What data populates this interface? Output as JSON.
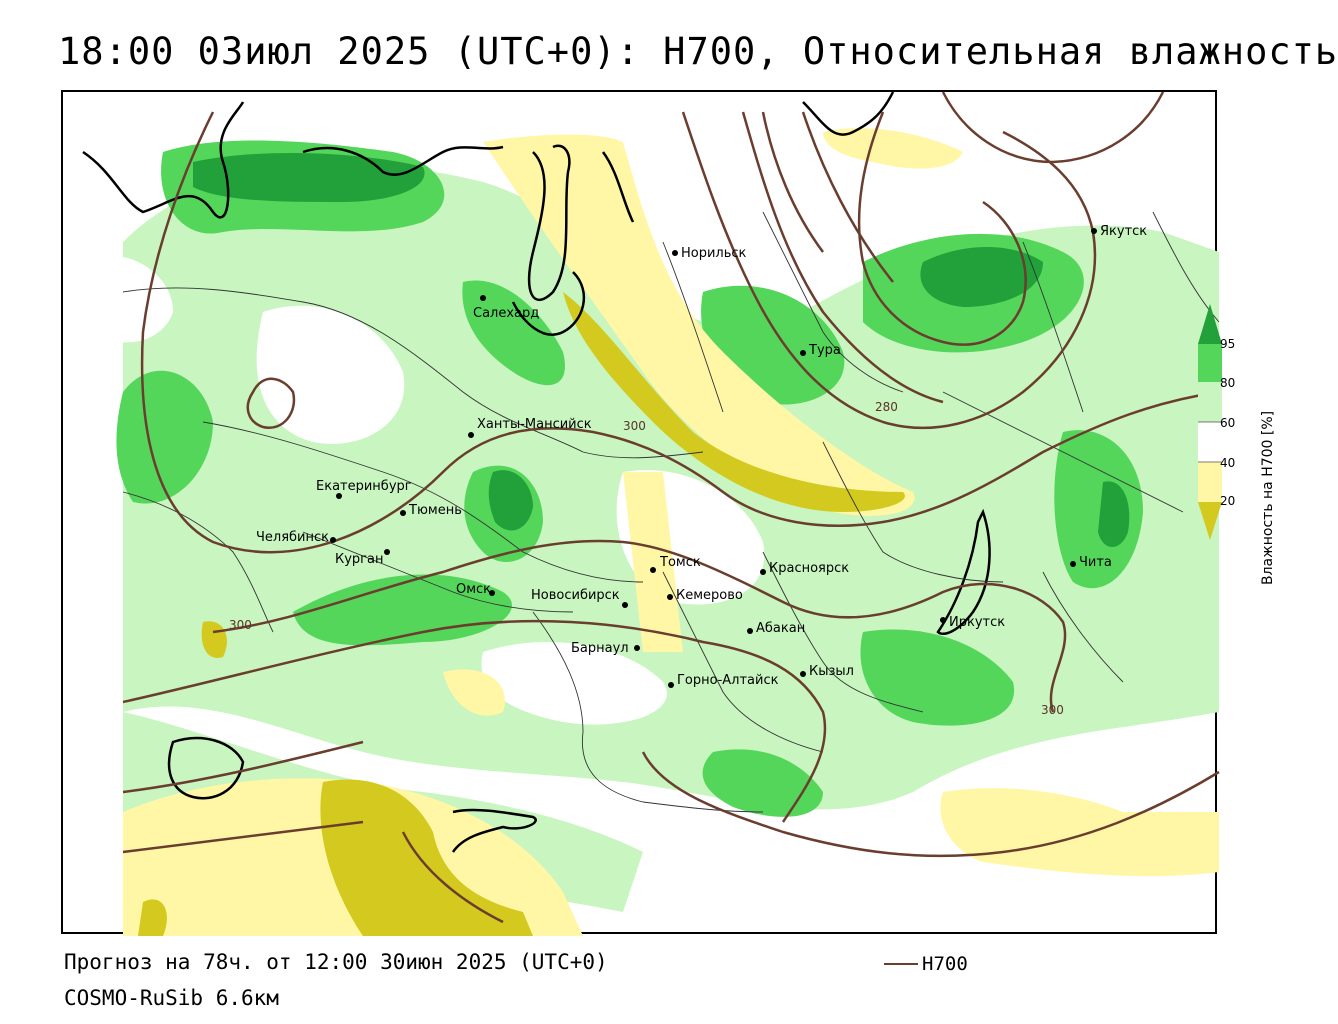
{
  "title": "18:00 03июл 2025 (UTC+0): H700, Относительная влажность",
  "footer": {
    "forecast": "Прогноз на 78ч. от 12:00 30июн 2025 (UTC+0)",
    "model": "COSMO-RuSib 6.6км"
  },
  "legend": {
    "line_label": "H700",
    "line_color": "#6b3d2e"
  },
  "colorbar": {
    "title": "Влажность на H700 [%]",
    "ticks": [
      "95",
      "80",
      "60",
      "40",
      "20"
    ],
    "colors": {
      "very_dry": "#d4c91e",
      "dry": "#fff7a6",
      "neutral": "#ffffff",
      "moist": "#c8f5c0",
      "wet": "#54d65a",
      "very_wet": "#22a03a"
    }
  },
  "contour_labels": [
    "300",
    "300",
    "300",
    "280"
  ],
  "cities": [
    {
      "name": "Норильск"
    },
    {
      "name": "Якутск"
    },
    {
      "name": "Салехард"
    },
    {
      "name": "Тура"
    },
    {
      "name": "Ханты-Мансийск"
    },
    {
      "name": "Екатеринбург"
    },
    {
      "name": "Тюмень"
    },
    {
      "name": "Челябинск"
    },
    {
      "name": "Курган"
    },
    {
      "name": "Омск"
    },
    {
      "name": "Новосибирск"
    },
    {
      "name": "Томск"
    },
    {
      "name": "Кемерово"
    },
    {
      "name": "Красноярск"
    },
    {
      "name": "Барнаул"
    },
    {
      "name": "Абакан"
    },
    {
      "name": "Горно-Алтайск"
    },
    {
      "name": "Кызыл"
    },
    {
      "name": "Иркутск"
    },
    {
      "name": "Чита"
    }
  ]
}
